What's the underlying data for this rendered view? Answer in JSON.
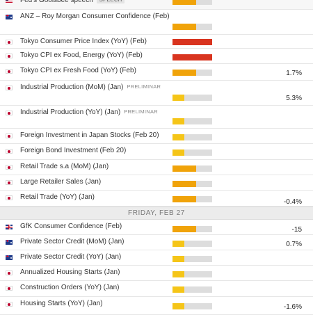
{
  "colors": {
    "impact_low": "#f5c518",
    "impact_medium": "#f0a30a",
    "impact_high": "#d9341f",
    "impact_track": "#dddddd"
  },
  "day_header": "FRIDAY, FEB 27",
  "events_thursday": [
    {
      "flag": "us-flag-icon",
      "name": "Fed's Goolsbee speech",
      "tag": "SPEECH",
      "impact": 0.6,
      "impact_level": "medium",
      "actual": ""
    },
    {
      "flag": "australia-flag-icon",
      "name": "ANZ – Roy Morgan Consumer Confidence (Feb)",
      "tag": "",
      "impact": 0.6,
      "impact_level": "medium",
      "actual": ""
    },
    {
      "flag": "japan-flag-icon",
      "name": "Tokyo Consumer Price Index (YoY) (Feb)",
      "tag": "",
      "impact": 1.0,
      "impact_level": "high",
      "actual": ""
    },
    {
      "flag": "japan-flag-icon",
      "name": "Tokyo CPI ex Food, Energy (YoY) (Feb)",
      "tag": "",
      "impact": 1.0,
      "impact_level": "high",
      "actual": ""
    },
    {
      "flag": "japan-flag-icon",
      "name": "Tokyo CPI ex Fresh Food (YoY) (Feb)",
      "tag": "",
      "impact": 0.6,
      "impact_level": "medium",
      "actual": "1.7%"
    },
    {
      "flag": "japan-flag-icon",
      "name": "Industrial Production (MoM) (Jan)",
      "tag": "PRELIMINAR",
      "impact": 0.3,
      "impact_level": "low",
      "actual": "5.3%"
    },
    {
      "flag": "japan-flag-icon",
      "name": "Industrial Production (YoY) (Jan)",
      "tag": "PRELIMINAR",
      "impact": 0.3,
      "impact_level": "low",
      "actual": ""
    },
    {
      "flag": "japan-flag-icon",
      "name": "Foreign Investment in Japan Stocks (Feb 20)",
      "tag": "",
      "impact": 0.3,
      "impact_level": "low",
      "actual": ""
    },
    {
      "flag": "japan-flag-icon",
      "name": "Foreign Bond Investment (Feb 20)",
      "tag": "",
      "impact": 0.3,
      "impact_level": "low",
      "actual": ""
    },
    {
      "flag": "japan-flag-icon",
      "name": "Retail Trade s.a (MoM) (Jan)",
      "tag": "",
      "impact": 0.6,
      "impact_level": "medium",
      "actual": ""
    },
    {
      "flag": "japan-flag-icon",
      "name": "Large Retailer Sales (Jan)",
      "tag": "",
      "impact": 0.6,
      "impact_level": "medium",
      "actual": ""
    },
    {
      "flag": "japan-flag-icon",
      "name": "Retail Trade (YoY) (Jan)",
      "tag": "",
      "impact": 0.6,
      "impact_level": "medium",
      "actual": "-0.4%"
    }
  ],
  "events_friday": [
    {
      "flag": "uk-flag-icon",
      "name": "GfK Consumer Confidence (Feb)",
      "tag": "",
      "impact": 0.6,
      "impact_level": "medium",
      "actual": "-15"
    },
    {
      "flag": "australia-flag-icon",
      "name": "Private Sector Credit (MoM) (Jan)",
      "tag": "",
      "impact": 0.3,
      "impact_level": "low",
      "actual": "0.7%"
    },
    {
      "flag": "australia-flag-icon",
      "name": "Private Sector Credit (YoY) (Jan)",
      "tag": "",
      "impact": 0.3,
      "impact_level": "low",
      "actual": ""
    },
    {
      "flag": "japan-flag-icon",
      "name": "Annualized Housing Starts (Jan)",
      "tag": "",
      "impact": 0.3,
      "impact_level": "low",
      "actual": ""
    },
    {
      "flag": "japan-flag-icon",
      "name": "Construction Orders (YoY) (Jan)",
      "tag": "",
      "impact": 0.3,
      "impact_level": "low",
      "actual": ""
    },
    {
      "flag": "japan-flag-icon",
      "name": "Housing Starts (YoY) (Jan)",
      "tag": "",
      "impact": 0.3,
      "impact_level": "low",
      "actual": "-1.6%"
    }
  ]
}
